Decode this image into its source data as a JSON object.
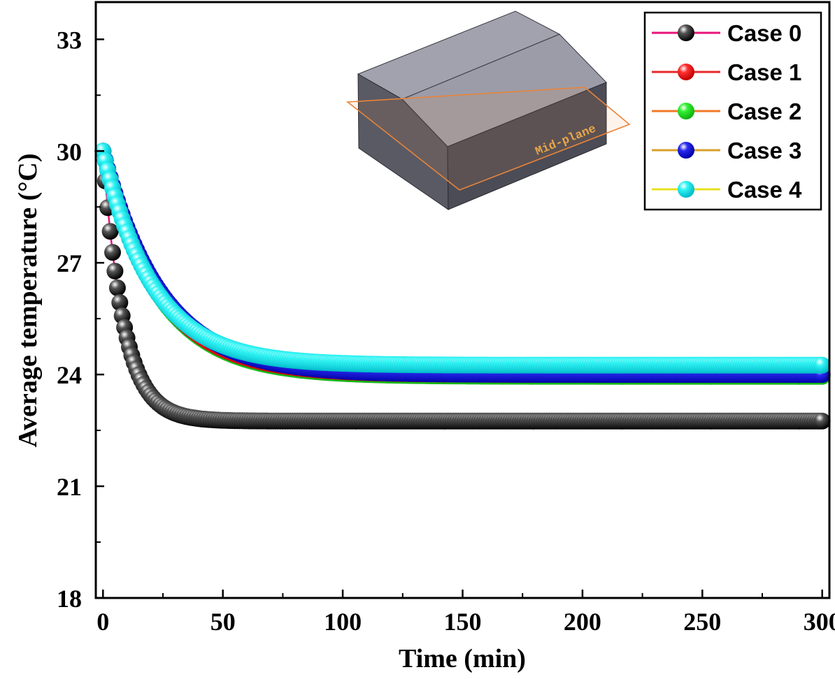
{
  "chart_data": {
    "type": "line",
    "xlabel": "Time (min)",
    "ylabel": "Average temperature (°C)",
    "xlim": [
      -3,
      303
    ],
    "ylim": [
      18,
      34
    ],
    "xticks": [
      0,
      50,
      100,
      150,
      200,
      250,
      300
    ],
    "yticks": [
      18,
      21,
      24,
      27,
      30,
      33
    ],
    "grid": false,
    "legend": "top-right",
    "inset_label": "Mid-plane",
    "series": [
      {
        "name": "Case 0",
        "line_color": "#e8147a",
        "marker_color": "#111111",
        "start": 30.0,
        "end": 22.75,
        "tau": 8.5
      },
      {
        "name": "Case 1",
        "line_color": "#e8282a",
        "marker_color": "#ff1a1a",
        "start": 30.0,
        "end": 24.0,
        "tau": 23
      },
      {
        "name": "Case 2",
        "line_color": "#f07a28",
        "marker_color": "#22e822",
        "start": 30.0,
        "end": 23.95,
        "tau": 23
      },
      {
        "name": "Case 3",
        "line_color": "#d8a028",
        "marker_color": "#1a1adc",
        "start": 30.0,
        "end": 24.0,
        "tau": 24
      },
      {
        "name": "Case 4",
        "line_color": "#e8e020",
        "marker_color": "#22eeee",
        "start": 30.0,
        "end": 24.25,
        "tau": 21
      }
    ]
  }
}
